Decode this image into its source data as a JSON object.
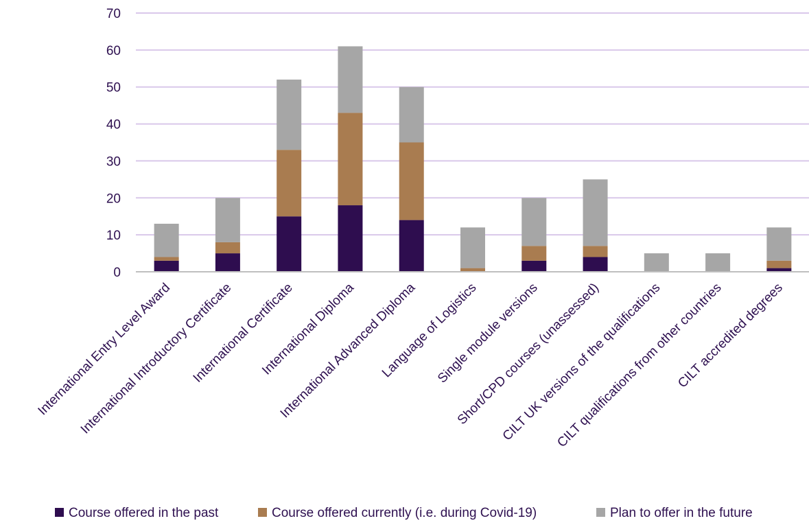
{
  "chart_data": {
    "type": "bar",
    "stacked": true,
    "title": "",
    "xlabel": "",
    "ylabel": "",
    "ylim": [
      0,
      70
    ],
    "yticks": [
      0,
      10,
      20,
      30,
      40,
      50,
      60,
      70
    ],
    "grid": true,
    "legend_position": "bottom",
    "categories": [
      "International Entry Level Award",
      "International Introductory Certificate",
      "International Certificate",
      "International Diploma",
      "International Advanced Diploma",
      "Language of Logistics",
      "Single module versions",
      "Short/CPD courses (unassessed)",
      "CILT UK versions of the qualifications",
      "CILT qualifications from other countries",
      "CILT accredited degrees"
    ],
    "series": [
      {
        "name": "Course offered in the past",
        "color": "#2e0d4f",
        "values": [
          3,
          5,
          15,
          18,
          14,
          0,
          3,
          4,
          0,
          0,
          1
        ]
      },
      {
        "name": "Course offered currently (i.e. during Covid-19)",
        "color": "#a97c50",
        "values": [
          1,
          3,
          18,
          25,
          21,
          1,
          4,
          3,
          0,
          0,
          2
        ]
      },
      {
        "name": "Plan to offer in the future",
        "color": "#a6a6a6",
        "values": [
          9,
          12,
          19,
          18,
          15,
          11,
          13,
          18,
          5,
          5,
          9
        ]
      }
    ],
    "gridline_color": "#d9c8ea",
    "axis_color": "#bfbfbf"
  }
}
